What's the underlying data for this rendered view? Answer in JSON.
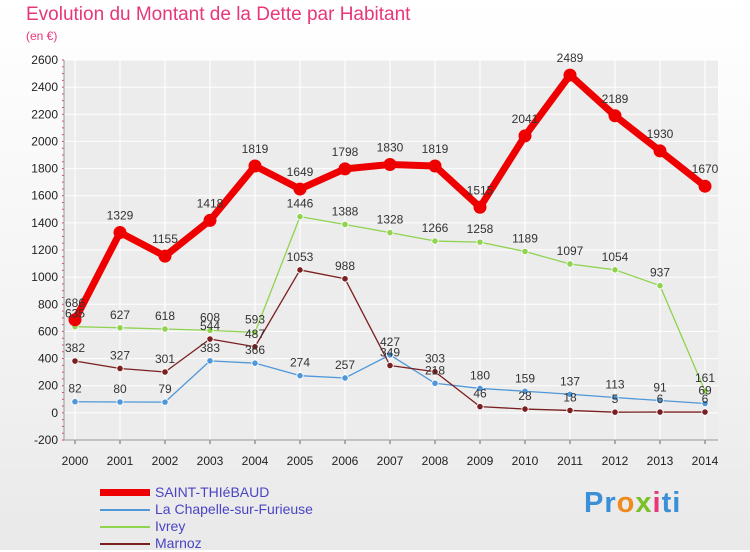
{
  "title": "Evolution du Montant de la Dette par Habitant",
  "subtitle": "(en €)",
  "logo": {
    "text": "Proxiti",
    "letters": [
      "P",
      "r",
      "o",
      "x",
      "i",
      "t",
      "i"
    ],
    "colors": [
      "#3a8fd6",
      "#3a8fd6",
      "#f08a1c",
      "#7bbf2a",
      "#e8367a",
      "#3a8fd6",
      "#3a8fd6"
    ]
  },
  "chart_data": {
    "type": "line",
    "x": [
      2000,
      2001,
      2002,
      2003,
      2004,
      2005,
      2006,
      2007,
      2008,
      2009,
      2010,
      2011,
      2012,
      2013,
      2014
    ],
    "ylim": [
      -200,
      2600
    ],
    "yticks": [
      -200,
      0,
      200,
      400,
      600,
      800,
      1000,
      1200,
      1400,
      1600,
      1800,
      2000,
      2200,
      2400,
      2600
    ],
    "grid": true,
    "series": [
      {
        "name": "SAINT-THIéBAUD",
        "color": "#ee0000",
        "values": [
          686,
          1329,
          1155,
          1418,
          1819,
          1649,
          1798,
          1830,
          1819,
          1515,
          2041,
          2489,
          2189,
          1930,
          1670
        ],
        "labels": [
          "686",
          "1329",
          "1155",
          "1418",
          "1819",
          "1649",
          "1798",
          "1830",
          "1819",
          "1515",
          "2041",
          "2489",
          "2189",
          "1930",
          "1670"
        ]
      },
      {
        "name": "La Chapelle-sur-Furieuse",
        "color": "#4f97d8",
        "values": [
          82,
          80,
          79,
          383,
          366,
          274,
          257,
          427,
          218,
          180,
          159,
          137,
          113,
          91,
          69
        ],
        "labels": [
          "82",
          "80",
          "79",
          "383",
          "366",
          "274",
          "257",
          "427",
          "218",
          "180",
          "159",
          "137",
          "113",
          "91",
          "69"
        ]
      },
      {
        "name": "Ivrey",
        "color": "#8fd34f",
        "values": [
          635,
          627,
          618,
          608,
          593,
          1446,
          1388,
          1328,
          1266,
          1258,
          1189,
          1097,
          1054,
          937,
          161
        ],
        "labels": [
          "635",
          "627",
          "618",
          "608",
          "593",
          "1446",
          "1388",
          "1328",
          "1266",
          "1258",
          "1189",
          "1097",
          "1054",
          "937",
          "161"
        ]
      },
      {
        "name": "Marnoz",
        "color": "#7a1f1f",
        "values": [
          382,
          327,
          301,
          544,
          487,
          1053,
          988,
          349,
          303,
          46,
          28,
          18,
          5,
          6,
          6
        ],
        "labels": [
          "382",
          "327",
          "301",
          "544",
          "487",
          "1053",
          "988",
          "349",
          "303",
          "46",
          "28",
          "18",
          "5",
          "6",
          "6"
        ]
      }
    ]
  }
}
